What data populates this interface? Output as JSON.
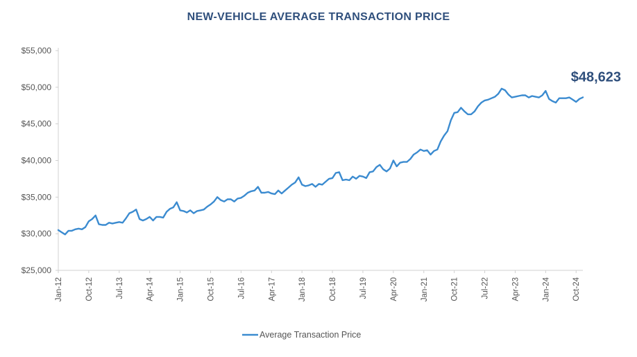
{
  "chart_data": {
    "type": "line",
    "title": "NEW-VEHICLE AVERAGE TRANSACTION PRICE",
    "xlabel": "",
    "ylabel": "",
    "ylim": [
      25000,
      55000
    ],
    "y_ticks": [
      "$25,000",
      "$30,000",
      "$35,000",
      "$40,000",
      "$45,000",
      "$50,000",
      "$55,000"
    ],
    "y_tick_values": [
      25000,
      30000,
      35000,
      40000,
      45000,
      50000,
      55000
    ],
    "x_ticks": [
      "Jan-12",
      "Oct-12",
      "Jul-13",
      "Apr-14",
      "Jan-15",
      "Oct-15",
      "Jul-16",
      "Apr-17",
      "Jan-18",
      "Oct-18",
      "Jul-19",
      "Apr-20",
      "Jan-21",
      "Oct-21",
      "Jul-22",
      "Apr-23",
      "Jan-24",
      "Oct-24"
    ],
    "x_range": [
      "Jan-12",
      "Oct-24"
    ],
    "grid": false,
    "legend_position": "bottom",
    "colors": {
      "series": "#3b8bd0",
      "callout": "#2f4f7c",
      "title": "#2f4f7c"
    },
    "annotation": {
      "text": "$48,623",
      "x": "Oct-24",
      "y": 48623
    },
    "series": [
      {
        "name": "Average Transaction Price",
        "values": [
          30500,
          30200,
          29900,
          30400,
          30400,
          30600,
          30700,
          30600,
          30900,
          31700,
          32000,
          32500,
          31300,
          31200,
          31200,
          31500,
          31400,
          31500,
          31600,
          31500,
          32100,
          32800,
          33000,
          33300,
          32000,
          31800,
          32000,
          32300,
          31800,
          32300,
          32300,
          32200,
          33000,
          33400,
          33600,
          34300,
          33200,
          33100,
          32900,
          33200,
          32800,
          33100,
          33200,
          33300,
          33700,
          34000,
          34400,
          35000,
          34600,
          34400,
          34700,
          34700,
          34400,
          34800,
          34900,
          35200,
          35600,
          35800,
          35900,
          36400,
          35600,
          35600,
          35700,
          35500,
          35400,
          35900,
          35500,
          35900,
          36300,
          36700,
          37000,
          37700,
          36700,
          36500,
          36600,
          36800,
          36400,
          36800,
          36700,
          37100,
          37500,
          37600,
          38300,
          38400,
          37300,
          37400,
          37300,
          37800,
          37500,
          37900,
          37800,
          37600,
          38400,
          38500,
          39100,
          39400,
          38800,
          38500,
          38900,
          40000,
          39200,
          39700,
          39800,
          39800,
          40200,
          40800,
          41100,
          41500,
          41300,
          41400,
          40800,
          41300,
          41500,
          42600,
          43400,
          44000,
          45500,
          46500,
          46600,
          47200,
          46700,
          46300,
          46300,
          46700,
          47400,
          47900,
          48200,
          48300,
          48500,
          48700,
          49100,
          49800,
          49600,
          49000,
          48600,
          48700,
          48800,
          48900,
          48900,
          48600,
          48800,
          48700,
          48600,
          48900,
          49500,
          48400,
          48100,
          47900,
          48500,
          48500,
          48500,
          48600,
          48300,
          48000,
          48400,
          48623
        ]
      }
    ]
  }
}
